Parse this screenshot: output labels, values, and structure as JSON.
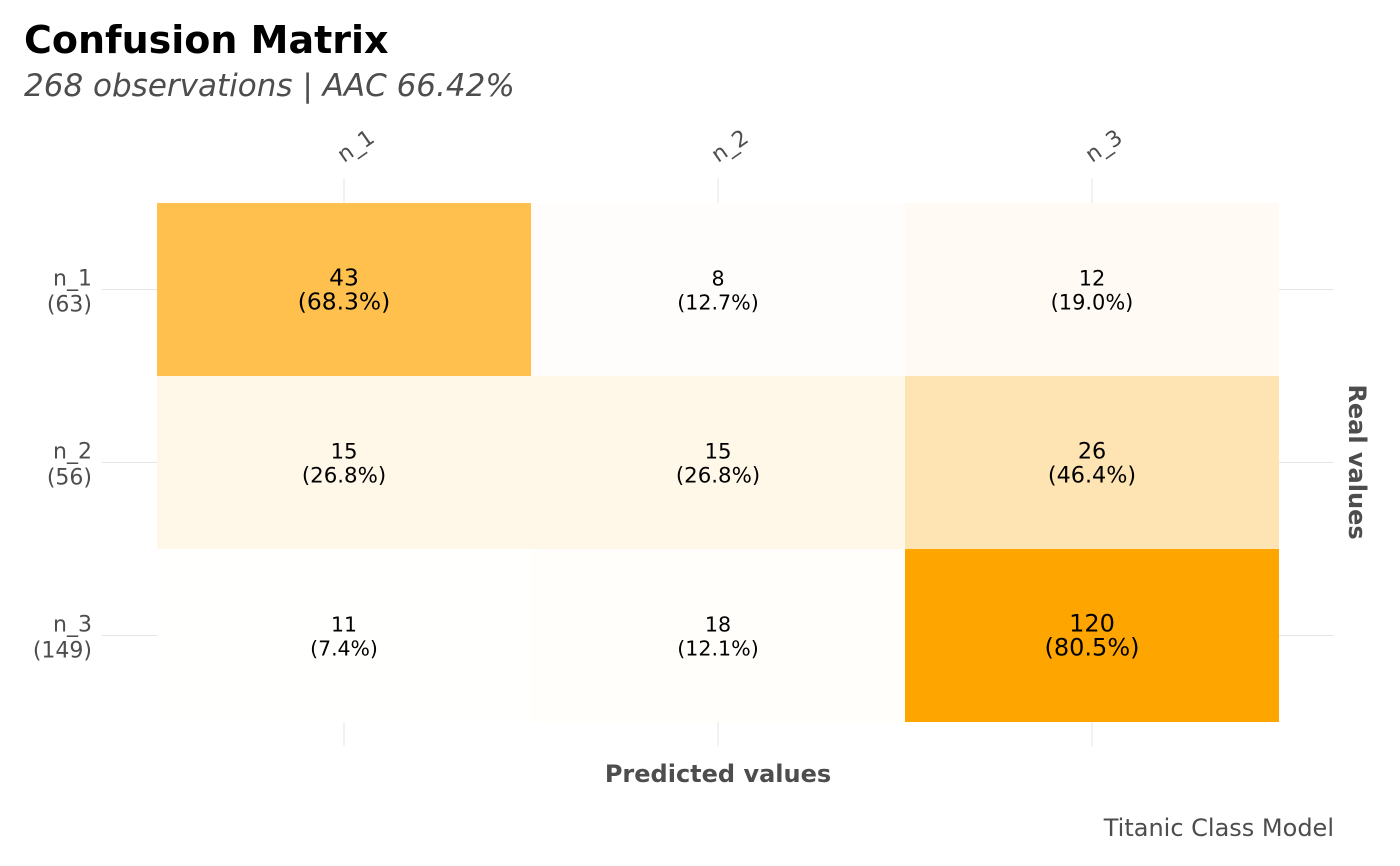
{
  "colors": {
    "low": "#ffffff",
    "high": "#ffa500",
    "text": "#000000",
    "axis_text": "#4d4d4d",
    "grid": "#e6e6e6"
  },
  "chart_data": {
    "type": "heatmap",
    "title": "Confusion Matrix",
    "subtitle": "268 observations | AAC 66.42%",
    "xlabel": "Predicted values",
    "ylabel": "Real values",
    "caption": "Titanic Class Model",
    "x_categories": [
      "n_1",
      "n_2",
      "n_3"
    ],
    "y_categories": [
      "n_1",
      "n_2",
      "n_3"
    ],
    "y_totals": [
      "(63)",
      "(56)",
      "(149)"
    ],
    "cells": [
      [
        {
          "count": "43",
          "pct": "(68.3%)",
          "value": 68.3
        },
        {
          "count": "8",
          "pct": "(12.7%)",
          "value": 12.7
        },
        {
          "count": "12",
          "pct": "(19.0%)",
          "value": 19.0
        }
      ],
      [
        {
          "count": "15",
          "pct": "(26.8%)",
          "value": 26.8
        },
        {
          "count": "15",
          "pct": "(26.8%)",
          "value": 26.8
        },
        {
          "count": "26",
          "pct": "(46.4%)",
          "value": 46.4
        }
      ],
      [
        {
          "count": "11",
          "pct": "(7.4%)",
          "value": 7.4
        },
        {
          "count": "18",
          "pct": "(12.1%)",
          "value": 12.1
        },
        {
          "count": "120",
          "pct": "(80.5%)",
          "value": 80.5
        }
      ]
    ],
    "grid": true,
    "legend": "none"
  }
}
